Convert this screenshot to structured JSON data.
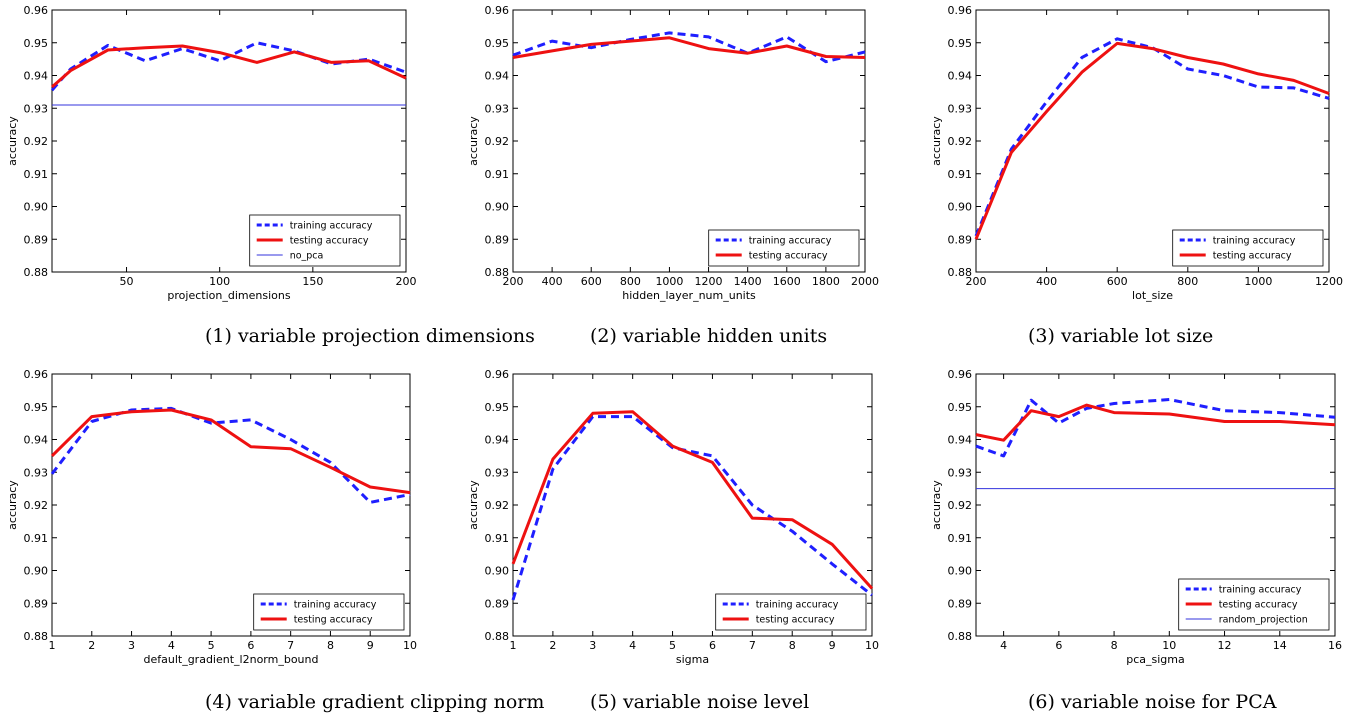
{
  "colors": {
    "training": "#1f1fff",
    "testing": "#ee1111",
    "baseline": "#3333dd"
  },
  "chart_data": [
    {
      "type": "line",
      "caption": "(1) variable projection dimensions",
      "xlabel": "projection_dimensions",
      "ylabel": "accuracy",
      "xlim": [
        10,
        200
      ],
      "ylim": [
        0.88,
        0.96
      ],
      "xticks": [
        50,
        100,
        150,
        200
      ],
      "xtick_labels": [
        "50",
        "100",
        "150",
        "200"
      ],
      "yticks": [
        0.88,
        0.89,
        0.9,
        0.91,
        0.92,
        0.93,
        0.94,
        0.95,
        0.96
      ],
      "ytick_labels": [
        "0.88",
        "0.89",
        "0.90",
        "0.91",
        "0.92",
        "0.93",
        "0.94",
        "0.95",
        "0.96"
      ],
      "legend": "lower-right",
      "series": [
        {
          "name": "training accuracy",
          "style": "dashed",
          "x": [
            10,
            20,
            40,
            60,
            80,
            100,
            120,
            140,
            160,
            180,
            200
          ],
          "y": [
            0.9355,
            0.942,
            0.9492,
            0.9445,
            0.9482,
            0.9445,
            0.95,
            0.9475,
            0.9435,
            0.945,
            0.941
          ]
        },
        {
          "name": "testing accuracy",
          "style": "solid",
          "x": [
            10,
            20,
            40,
            60,
            80,
            100,
            120,
            140,
            160,
            180,
            200
          ],
          "y": [
            0.9365,
            0.9415,
            0.9478,
            0.9485,
            0.949,
            0.947,
            0.944,
            0.9472,
            0.944,
            0.9445,
            0.9392
          ]
        },
        {
          "name": "no_pca",
          "style": "thin",
          "x": [
            10,
            200
          ],
          "y": [
            0.931,
            0.931
          ]
        }
      ]
    },
    {
      "type": "line",
      "caption": "(2) variable hidden units",
      "xlabel": "hidden_layer_num_units",
      "ylabel": "accuracy",
      "xlim": [
        200,
        2000
      ],
      "ylim": [
        0.88,
        0.96
      ],
      "xticks": [
        200,
        400,
        600,
        800,
        1000,
        1200,
        1400,
        1600,
        1800,
        2000
      ],
      "xtick_labels": [
        "200",
        "400",
        "600",
        "800",
        "1000",
        "1200",
        "1400",
        "1600",
        "1800",
        "2000"
      ],
      "yticks": [
        0.88,
        0.89,
        0.9,
        0.91,
        0.92,
        0.93,
        0.94,
        0.95,
        0.96
      ],
      "ytick_labels": [
        "0.88",
        "0.89",
        "0.90",
        "0.91",
        "0.92",
        "0.93",
        "0.94",
        "0.95",
        "0.96"
      ],
      "legend": "lower-right",
      "series": [
        {
          "name": "training accuracy",
          "style": "dashed",
          "x": [
            200,
            400,
            600,
            800,
            1000,
            1200,
            1400,
            1600,
            1800,
            2000
          ],
          "y": [
            0.9462,
            0.9505,
            0.9485,
            0.951,
            0.953,
            0.9518,
            0.9468,
            0.9518,
            0.9442,
            0.9472
          ]
        },
        {
          "name": "testing accuracy",
          "style": "solid",
          "x": [
            200,
            400,
            600,
            800,
            1000,
            1200,
            1400,
            1600,
            1800,
            2000
          ],
          "y": [
            0.9455,
            0.9475,
            0.9495,
            0.9505,
            0.9515,
            0.9482,
            0.9468,
            0.949,
            0.9458,
            0.9455
          ]
        }
      ]
    },
    {
      "type": "line",
      "caption": "(3) variable lot size",
      "xlabel": "lot_size",
      "ylabel": "accuracy",
      "xlim": [
        200,
        1200
      ],
      "ylim": [
        0.88,
        0.96
      ],
      "xticks": [
        200,
        400,
        600,
        800,
        1000,
        1200
      ],
      "xtick_labels": [
        "200",
        "400",
        "600",
        "800",
        "1000",
        "1200"
      ],
      "yticks": [
        0.88,
        0.89,
        0.9,
        0.91,
        0.92,
        0.93,
        0.94,
        0.95,
        0.96
      ],
      "ytick_labels": [
        "0.88",
        "0.89",
        "0.90",
        "0.91",
        "0.92",
        "0.93",
        "0.94",
        "0.95",
        "0.96"
      ],
      "legend": "lower-right",
      "series": [
        {
          "name": "training accuracy",
          "style": "dashed",
          "x": [
            200,
            300,
            400,
            500,
            600,
            700,
            800,
            900,
            1000,
            1100,
            1200
          ],
          "y": [
            0.891,
            0.9175,
            0.932,
            0.9455,
            0.9512,
            0.9485,
            0.942,
            0.94,
            0.9365,
            0.9362,
            0.933
          ]
        },
        {
          "name": "testing accuracy",
          "style": "solid",
          "x": [
            200,
            300,
            400,
            500,
            600,
            700,
            800,
            900,
            1000,
            1100,
            1200
          ],
          "y": [
            0.89,
            0.9165,
            0.929,
            0.941,
            0.9498,
            0.9482,
            0.9455,
            0.9435,
            0.9405,
            0.9385,
            0.9345
          ]
        }
      ]
    },
    {
      "type": "line",
      "caption": "(4) variable gradient clipping norm",
      "xlabel": "default_gradient_l2norm_bound",
      "ylabel": "accuracy",
      "xlim": [
        1,
        10
      ],
      "ylim": [
        0.88,
        0.96
      ],
      "xticks": [
        1,
        2,
        3,
        4,
        5,
        6,
        7,
        8,
        9,
        10
      ],
      "xtick_labels": [
        "1",
        "2",
        "3",
        "4",
        "5",
        "6",
        "7",
        "8",
        "9",
        "10"
      ],
      "yticks": [
        0.88,
        0.89,
        0.9,
        0.91,
        0.92,
        0.93,
        0.94,
        0.95,
        0.96
      ],
      "ytick_labels": [
        "0.88",
        "0.89",
        "0.90",
        "0.91",
        "0.92",
        "0.93",
        "0.94",
        "0.95",
        "0.96"
      ],
      "legend": "lower-right",
      "series": [
        {
          "name": "training accuracy",
          "style": "dashed",
          "x": [
            1,
            2,
            3,
            4,
            5,
            6,
            7,
            8,
            9,
            10
          ],
          "y": [
            0.9295,
            0.9455,
            0.949,
            0.9495,
            0.945,
            0.946,
            0.94,
            0.933,
            0.9208,
            0.9232
          ]
        },
        {
          "name": "testing accuracy",
          "style": "solid",
          "x": [
            1,
            2,
            3,
            4,
            5,
            6,
            7,
            8,
            9,
            10
          ],
          "y": [
            0.935,
            0.947,
            0.9485,
            0.949,
            0.946,
            0.9378,
            0.9372,
            0.9315,
            0.9255,
            0.9238
          ]
        }
      ]
    },
    {
      "type": "line",
      "caption": "(5) variable noise level",
      "xlabel": "sigma",
      "ylabel": "accuracy",
      "xlim": [
        1,
        10
      ],
      "ylim": [
        0.88,
        0.96
      ],
      "xticks": [
        1,
        2,
        3,
        4,
        5,
        6,
        7,
        8,
        9,
        10
      ],
      "xtick_labels": [
        "1",
        "2",
        "3",
        "4",
        "5",
        "6",
        "7",
        "8",
        "9",
        "10"
      ],
      "yticks": [
        0.88,
        0.89,
        0.9,
        0.91,
        0.92,
        0.93,
        0.94,
        0.95,
        0.96
      ],
      "ytick_labels": [
        "0.88",
        "0.89",
        "0.90",
        "0.91",
        "0.92",
        "0.93",
        "0.94",
        "0.95",
        "0.96"
      ],
      "legend": "lower-right",
      "series": [
        {
          "name": "training accuracy",
          "style": "dashed",
          "x": [
            1,
            2,
            3,
            4,
            5,
            6,
            7,
            8,
            9,
            10
          ],
          "y": [
            0.891,
            0.931,
            0.947,
            0.947,
            0.9375,
            0.935,
            0.92,
            0.912,
            0.902,
            0.8925
          ]
        },
        {
          "name": "testing accuracy",
          "style": "solid",
          "x": [
            1,
            2,
            3,
            4,
            5,
            6,
            7,
            8,
            9,
            10
          ],
          "y": [
            0.902,
            0.934,
            0.948,
            0.9485,
            0.938,
            0.933,
            0.916,
            0.9155,
            0.908,
            0.8945
          ]
        }
      ]
    },
    {
      "type": "line",
      "caption": "(6) variable noise for PCA",
      "xlabel": "pca_sigma",
      "ylabel": "accuracy",
      "xlim": [
        3,
        16
      ],
      "ylim": [
        0.88,
        0.96
      ],
      "xticks": [
        4,
        6,
        8,
        10,
        12,
        14,
        16
      ],
      "xtick_labels": [
        "4",
        "6",
        "8",
        "10",
        "12",
        "14",
        "16"
      ],
      "yticks": [
        0.88,
        0.89,
        0.9,
        0.91,
        0.92,
        0.93,
        0.94,
        0.95,
        0.96
      ],
      "ytick_labels": [
        "0.88",
        "0.89",
        "0.90",
        "0.91",
        "0.92",
        "0.93",
        "0.94",
        "0.95",
        "0.96"
      ],
      "legend": "lower-right",
      "series": [
        {
          "name": "training accuracy",
          "style": "dashed",
          "x": [
            3,
            4,
            5,
            6,
            7,
            8,
            10,
            12,
            14,
            16
          ],
          "y": [
            0.938,
            0.935,
            0.952,
            0.945,
            0.9495,
            0.951,
            0.9522,
            0.9488,
            0.9482,
            0.9468
          ]
        },
        {
          "name": "testing accuracy",
          "style": "solid",
          "x": [
            3,
            4,
            5,
            6,
            7,
            8,
            10,
            12,
            14,
            16
          ],
          "y": [
            0.9415,
            0.9398,
            0.9488,
            0.947,
            0.9505,
            0.9482,
            0.9478,
            0.9455,
            0.9455,
            0.9445
          ]
        },
        {
          "name": "random_projection",
          "style": "thin",
          "x": [
            3,
            16
          ],
          "y": [
            0.925,
            0.925
          ]
        }
      ]
    }
  ]
}
